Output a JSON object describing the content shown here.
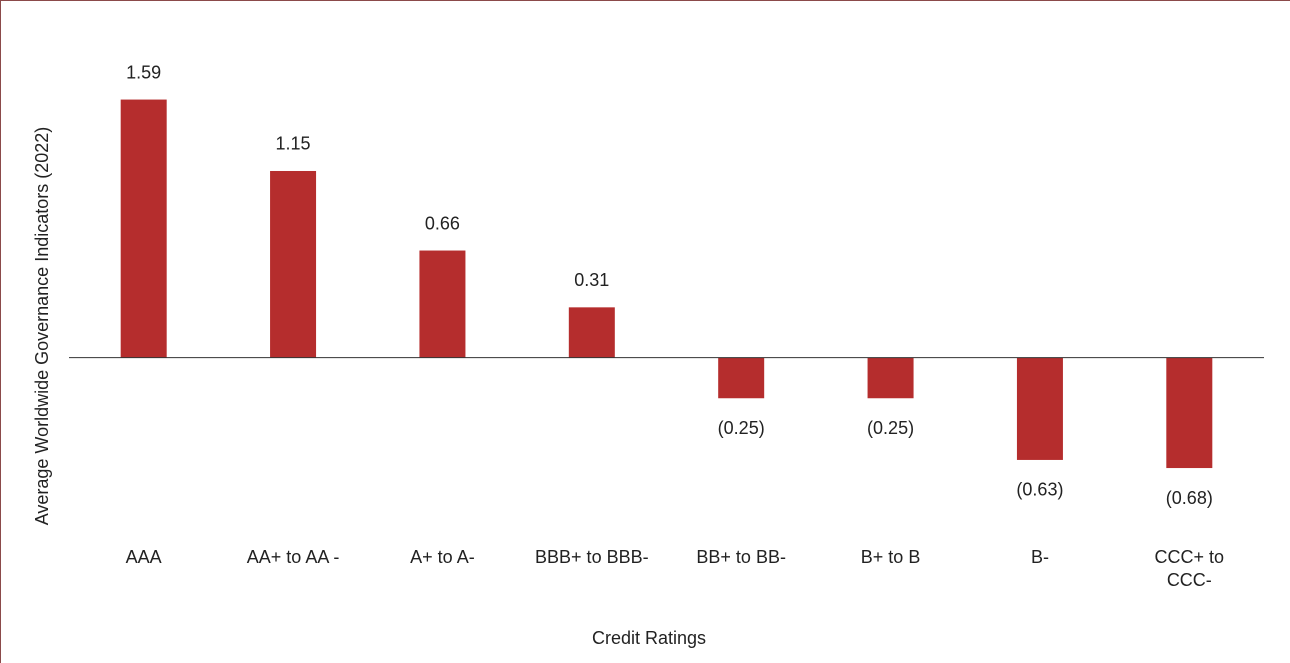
{
  "chart_data": {
    "type": "bar",
    "categories": [
      "AAA",
      "AA+ to AA -",
      "A+ to A-",
      "BBB+ to BBB-",
      "BB+ to BB-",
      "B+ to B",
      "B-",
      "CCC+ to CCC-"
    ],
    "values": [
      1.59,
      1.15,
      0.66,
      0.31,
      -0.25,
      -0.25,
      -0.63,
      -0.68
    ],
    "value_labels": [
      "1.59",
      "1.15",
      "0.66",
      "0.31",
      "(0.25)",
      "(0.25)",
      "(0.63)",
      "(0.68)"
    ],
    "color": "#b52d2d",
    "ylim": [
      -1,
      2
    ],
    "xlabel": "Credit Ratings",
    "ylabel": "Average Worldwide Governance Indicators (2022)"
  }
}
